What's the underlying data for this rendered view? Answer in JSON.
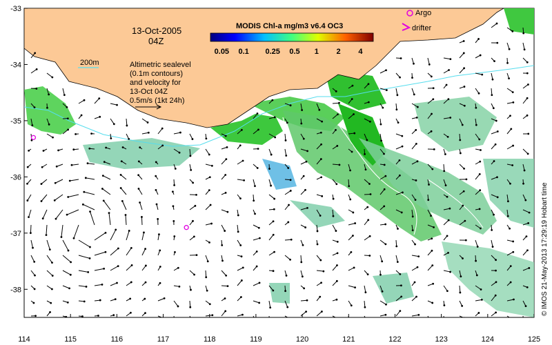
{
  "map": {
    "date_line1": "13-Oct-2005",
    "date_line2": "04Z",
    "contour_legend": "200m",
    "sealevel_note": [
      "Altimetric sealevel",
      "(0.1m contours)",
      "and velocity for",
      "13-Oct 04Z",
      "0.5m/s (1kt 24h)"
    ],
    "colorbar_title": "MODIS Chl-a mg/m3 v6.4 OC3",
    "colorbar_ticks": [
      "0.05",
      "0.1",
      "0.25",
      "0.5",
      "1",
      "2",
      "4"
    ],
    "legend_argo": "Argo",
    "legend_drifter": "drifter",
    "credit": "© IMOS 21-May-2013 17:29:19 Hobart time",
    "lon_ticks": [
      "114",
      "115",
      "116",
      "117",
      "118",
      "119",
      "120",
      "121",
      "122",
      "123",
      "124",
      "125"
    ],
    "lat_ticks": [
      "-33",
      "-34",
      "-35",
      "-36",
      "-37",
      "-38"
    ],
    "extent": {
      "lon": [
        114,
        125
      ],
      "lat": [
        -38.5,
        -33
      ]
    },
    "argo_floats": [
      {
        "lon": 114.2,
        "lat": -35.3
      },
      {
        "lon": 117.5,
        "lat": -36.9
      },
      {
        "lon": 122.35,
        "lat": -33.05
      }
    ],
    "colors": {
      "land": "#fcc996",
      "ocean": "#ffffff",
      "argo": "#e000e0",
      "contour200": "#55ddee"
    }
  }
}
